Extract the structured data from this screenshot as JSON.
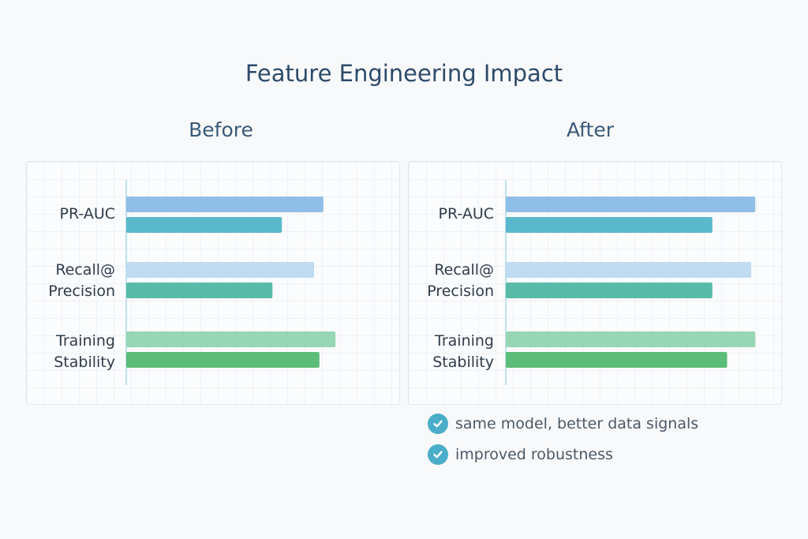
{
  "chart_data": [
    {
      "type": "bar",
      "orientation": "horizontal",
      "title": "Before",
      "categories": [
        "PR-AUC",
        "Recall@\nPrecision",
        "Training\nStability"
      ],
      "bars": [
        {
          "category": "PR-AUC",
          "values": [
            73.5,
            58
          ],
          "colors": [
            "#8fbfe6",
            "#5ab8cc"
          ]
        },
        {
          "category": "Recall@Precision",
          "values": [
            70,
            54.5
          ],
          "colors": [
            "#c0dcf3",
            "#58bba8"
          ]
        },
        {
          "category": "Training Stability",
          "values": [
            78,
            72
          ],
          "colors": [
            "#97d6b4",
            "#5cbd78"
          ]
        }
      ],
      "xlim": [
        0,
        100
      ],
      "grid": true,
      "ticks_shown": false
    },
    {
      "type": "bar",
      "orientation": "horizontal",
      "title": "After",
      "categories": [
        "PR-AUC",
        "Recall@\nPrecision",
        "Training\nStability"
      ],
      "bars": [
        {
          "category": "PR-AUC",
          "values": [
            93,
            77
          ],
          "colors": [
            "#8fbfe6",
            "#5ab8cc"
          ]
        },
        {
          "category": "Recall@Precision",
          "values": [
            91.5,
            77
          ],
          "colors": [
            "#c0dcf3",
            "#58bba8"
          ]
        },
        {
          "category": "Training Stability",
          "values": [
            93,
            82.5
          ],
          "colors": [
            "#97d6b4",
            "#5cbd78"
          ]
        }
      ],
      "xlim": [
        0,
        100
      ],
      "grid": true,
      "ticks_shown": false
    }
  ],
  "title": "Feature Engineering Impact",
  "panels": {
    "before": {
      "title": "Before",
      "labels": [
        "PR-AUC",
        "Recall@",
        "Precision",
        "Training",
        "Stability"
      ]
    },
    "after": {
      "title": "After",
      "labels": [
        "PR-AUC",
        "Recall@",
        "Precision",
        "Training",
        "Stability"
      ]
    }
  },
  "notes": [
    {
      "icon": "check-circle-icon",
      "text": "same model, better data signals"
    },
    {
      "icon": "check-circle-icon",
      "text": "improved robustness"
    }
  ],
  "colors": {
    "axis": "#a8d8ea",
    "check": "#4aadc9",
    "title": "#2d4a6b"
  }
}
